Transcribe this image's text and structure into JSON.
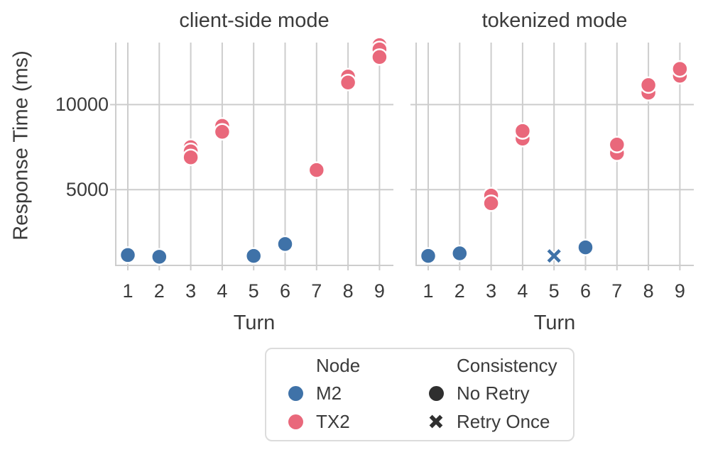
{
  "figure": {
    "ylabel": "Response Time (ms)",
    "xlabel": "Turn"
  },
  "colors": {
    "m2_blue": "#3F72A8",
    "tx2_pink": "#E9687B",
    "grid": "#CDCDCD",
    "text": "#3B3B3B",
    "legend_marker_dark": "#2F2F2F",
    "marker_edge": "#FFFFFF"
  },
  "chart_data": {
    "type": "scatter",
    "ylabel": "Response Time (ms)",
    "xlabel": "Turn",
    "grid": true,
    "ylim": [
      500,
      13650
    ],
    "yticks": [
      5000,
      10000
    ],
    "x_categories": [
      1,
      2,
      3,
      4,
      5,
      6,
      7,
      8,
      9
    ],
    "legend_position": "bottom-center",
    "panels": [
      {
        "title": "client-side mode",
        "points": [
          {
            "turn": 1,
            "node": "M2",
            "consistency": "No Retry",
            "ms": 1150,
            "overlap_ms": []
          },
          {
            "turn": 2,
            "node": "M2",
            "consistency": "No Retry",
            "ms": 1050,
            "overlap_ms": []
          },
          {
            "turn": 3,
            "node": "TX2",
            "consistency": "No Retry",
            "ms": 6900,
            "overlap_ms": [
              7250,
              7500
            ]
          },
          {
            "turn": 4,
            "node": "TX2",
            "consistency": "No Retry",
            "ms": 8400,
            "overlap_ms": [
              8750
            ]
          },
          {
            "turn": 5,
            "node": "M2",
            "consistency": "No Retry",
            "ms": 1100,
            "overlap_ms": []
          },
          {
            "turn": 6,
            "node": "M2",
            "consistency": "No Retry",
            "ms": 1800,
            "overlap_ms": []
          },
          {
            "turn": 7,
            "node": "TX2",
            "consistency": "No Retry",
            "ms": 6150,
            "overlap_ms": []
          },
          {
            "turn": 8,
            "node": "TX2",
            "consistency": "No Retry",
            "ms": 11300,
            "overlap_ms": [
              11650
            ]
          },
          {
            "turn": 9,
            "node": "TX2",
            "consistency": "No Retry",
            "ms": 12800,
            "overlap_ms": [
              13250,
              13500
            ]
          }
        ]
      },
      {
        "title": "tokenized mode",
        "points": [
          {
            "turn": 1,
            "node": "M2",
            "consistency": "No Retry",
            "ms": 1100,
            "overlap_ms": []
          },
          {
            "turn": 2,
            "node": "M2",
            "consistency": "No Retry",
            "ms": 1250,
            "overlap_ms": []
          },
          {
            "turn": 3,
            "node": "TX2",
            "consistency": "No Retry",
            "ms": 4200,
            "overlap_ms": [
              4650
            ]
          },
          {
            "turn": 4,
            "node": "TX2",
            "consistency": "No Retry",
            "ms": 8450,
            "overlap_ms": [
              8000
            ]
          },
          {
            "turn": 5,
            "node": "M2",
            "consistency": "Retry Once",
            "ms": 1100,
            "overlap_ms": []
          },
          {
            "turn": 6,
            "node": "M2",
            "consistency": "No Retry",
            "ms": 1600,
            "overlap_ms": []
          },
          {
            "turn": 7,
            "node": "TX2",
            "consistency": "No Retry",
            "ms": 7650,
            "overlap_ms": [
              7150
            ]
          },
          {
            "turn": 8,
            "node": "TX2",
            "consistency": "No Retry",
            "ms": 11150,
            "overlap_ms": [
              10700
            ]
          },
          {
            "turn": 9,
            "node": "TX2",
            "consistency": "No Retry",
            "ms": 12100,
            "overlap_ms": [
              11700
            ]
          }
        ]
      }
    ]
  },
  "legend": {
    "node": {
      "title": "Node",
      "items": [
        {
          "label": "M2",
          "color_key": "m2_blue",
          "marker": "circle"
        },
        {
          "label": "TX2",
          "color_key": "tx2_pink",
          "marker": "circle"
        }
      ]
    },
    "consistency": {
      "title": "Consistency",
      "items": [
        {
          "label": "No Retry",
          "marker": "circle"
        },
        {
          "label": "Retry Once",
          "marker": "x"
        }
      ]
    }
  }
}
